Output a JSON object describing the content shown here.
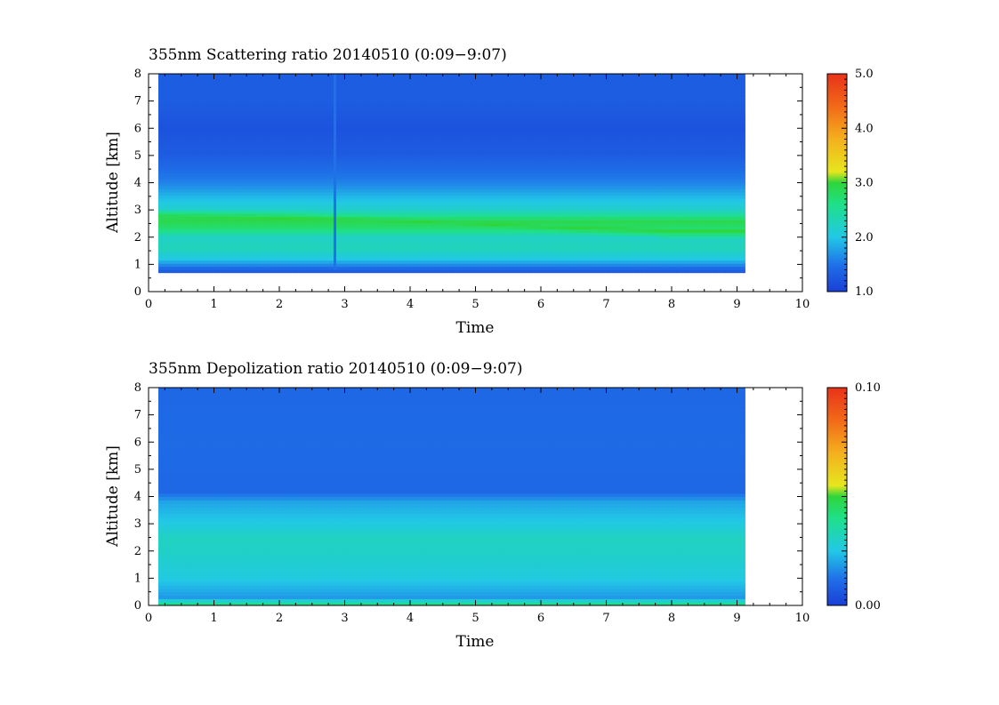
{
  "chart_data": [
    {
      "type": "heatmap",
      "title": "355nm Scattering ratio  20140510 (0:09−9:07)",
      "xlabel": "Time",
      "ylabel": "Altitude [km]",
      "xlim": [
        0,
        10
      ],
      "ylim": [
        0,
        8
      ],
      "x_ticks": [
        "0",
        "1",
        "2",
        "3",
        "4",
        "5",
        "6",
        "7",
        "8",
        "9",
        "10"
      ],
      "y_ticks": [
        "0",
        "1",
        "2",
        "3",
        "4",
        "5",
        "6",
        "7",
        "8"
      ],
      "data_time_range": [
        0.15,
        9.12
      ],
      "colorbar": {
        "min": 1.0,
        "max": 5.0,
        "tick_labels": [
          "1.0",
          "2.0",
          "3.0",
          "4.0",
          "5.0"
        ]
      },
      "layers": [
        {
          "altitude_km": 0.8,
          "value": 1.3
        },
        {
          "altitude_km": 1.2,
          "value": 2.0
        },
        {
          "altitude_km": 1.6,
          "value": 2.3
        },
        {
          "altitude_km": 2.0,
          "value": 2.2
        },
        {
          "altitude_km": 2.3,
          "value": 2.7
        },
        {
          "altitude_km": 2.6,
          "value": 2.9
        },
        {
          "altitude_km": 3.0,
          "value": 2.2
        },
        {
          "altitude_km": 3.5,
          "value": 1.9
        },
        {
          "altitude_km": 4.0,
          "value": 1.6
        },
        {
          "altitude_km": 5.0,
          "value": 1.3
        },
        {
          "altitude_km": 6.0,
          "value": 1.2
        },
        {
          "altitude_km": 7.0,
          "value": 1.3
        },
        {
          "altitude_km": 8.0,
          "value": 1.3
        }
      ],
      "peak_layer": {
        "x": [
          0.15,
          2,
          4,
          6,
          8,
          9.1
        ],
        "altitude_km": [
          2.75,
          2.7,
          2.6,
          2.4,
          2.25,
          2.25
        ],
        "value": 3.0
      },
      "gap_time": 2.85
    },
    {
      "type": "heatmap",
      "title": "355nm Depolization ratio  20140510 (0:09−9:07)",
      "xlabel": "Time",
      "ylabel": "Altitude [km]",
      "xlim": [
        0,
        10
      ],
      "ylim": [
        0,
        8
      ],
      "x_ticks": [
        "0",
        "1",
        "2",
        "3",
        "4",
        "5",
        "6",
        "7",
        "8",
        "9",
        "10"
      ],
      "y_ticks": [
        "0",
        "1",
        "2",
        "3",
        "4",
        "5",
        "6",
        "7",
        "8"
      ],
      "data_time_range": [
        0.15,
        9.12
      ],
      "colorbar": {
        "min": 0.0,
        "max": 0.1,
        "tick_labels": [
          "0.00",
          "0.10"
        ]
      },
      "layers": [
        {
          "altitude_km": 0.05,
          "value": 0.04
        },
        {
          "altitude_km": 0.3,
          "value": 0.018
        },
        {
          "altitude_km": 1.0,
          "value": 0.026
        },
        {
          "altitude_km": 2.0,
          "value": 0.03
        },
        {
          "altitude_km": 2.5,
          "value": 0.031
        },
        {
          "altitude_km": 3.0,
          "value": 0.026
        },
        {
          "altitude_km": 3.8,
          "value": 0.02
        },
        {
          "altitude_km": 4.2,
          "value": 0.01
        },
        {
          "altitude_km": 6.0,
          "value": 0.011
        },
        {
          "altitude_km": 8.0,
          "value": 0.01
        }
      ]
    }
  ]
}
